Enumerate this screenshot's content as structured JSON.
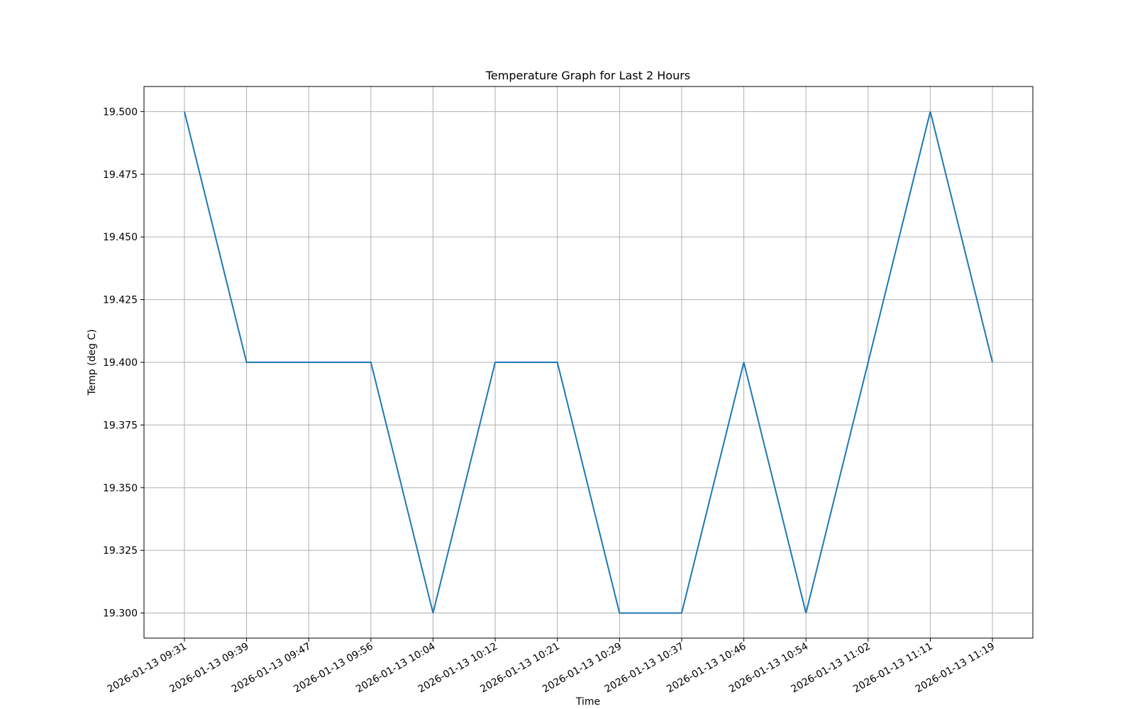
{
  "chart_data": {
    "type": "line",
    "title": "Temperature Graph for Last 2 Hours",
    "x_label": "Time",
    "y_label": "Temp (deg C)",
    "categories": [
      "2026-01-13 09:31",
      "2026-01-13 09:39",
      "2026-01-13 09:47",
      "2026-01-13 09:56",
      "2026-01-13 10:04",
      "2026-01-13 10:12",
      "2026-01-13 10:21",
      "2026-01-13 10:29",
      "2026-01-13 10:37",
      "2026-01-13 10:46",
      "2026-01-13 10:54",
      "2026-01-13 11:02",
      "2026-01-13 11:11",
      "2026-01-13 11:19"
    ],
    "values": [
      19.5,
      19.4,
      19.4,
      19.4,
      19.3,
      19.4,
      19.4,
      19.3,
      19.3,
      19.4,
      19.3,
      19.4,
      19.5,
      19.4
    ],
    "color": "#1f77b4",
    "ylim": [
      19.29,
      19.51
    ],
    "yticks": [
      {
        "value": 19.3,
        "label": "19.300"
      },
      {
        "value": 19.325,
        "label": "19.325"
      },
      {
        "value": 19.35,
        "label": "19.350"
      },
      {
        "value": 19.375,
        "label": "19.375"
      },
      {
        "value": 19.4,
        "label": "19.400"
      },
      {
        "value": 19.425,
        "label": "19.425"
      },
      {
        "value": 19.45,
        "label": "19.450"
      },
      {
        "value": 19.475,
        "label": "19.475"
      },
      {
        "value": 19.5,
        "label": "19.500"
      }
    ],
    "grid": true
  }
}
